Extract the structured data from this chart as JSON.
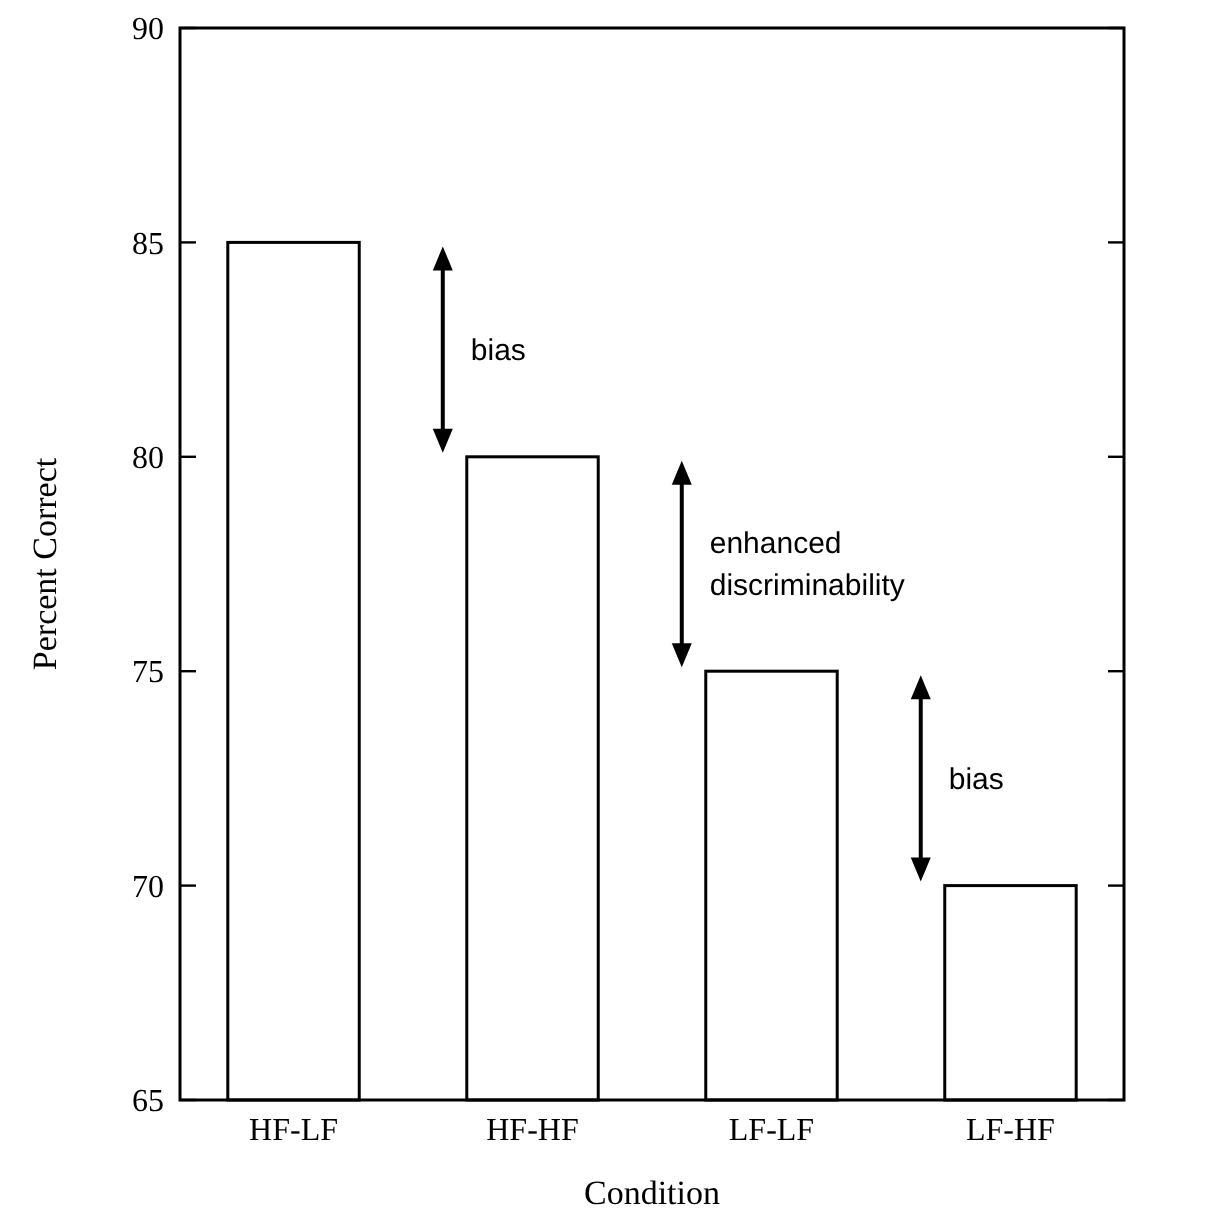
{
  "chart_data": {
    "type": "bar",
    "xlabel": "Condition",
    "ylabel": "Percent Correct",
    "categories": [
      "HF-LF",
      "HF-HF",
      "LF-LF",
      "LF-HF"
    ],
    "values": [
      85,
      80,
      75,
      70
    ],
    "color": "#ffffff",
    "ylim": [
      65,
      90
    ],
    "yticks": [
      65,
      70,
      75,
      80,
      85,
      90
    ],
    "grid": false,
    "annotations": [
      "bias",
      "enhanced\ndiscriminability",
      "bias"
    ]
  }
}
